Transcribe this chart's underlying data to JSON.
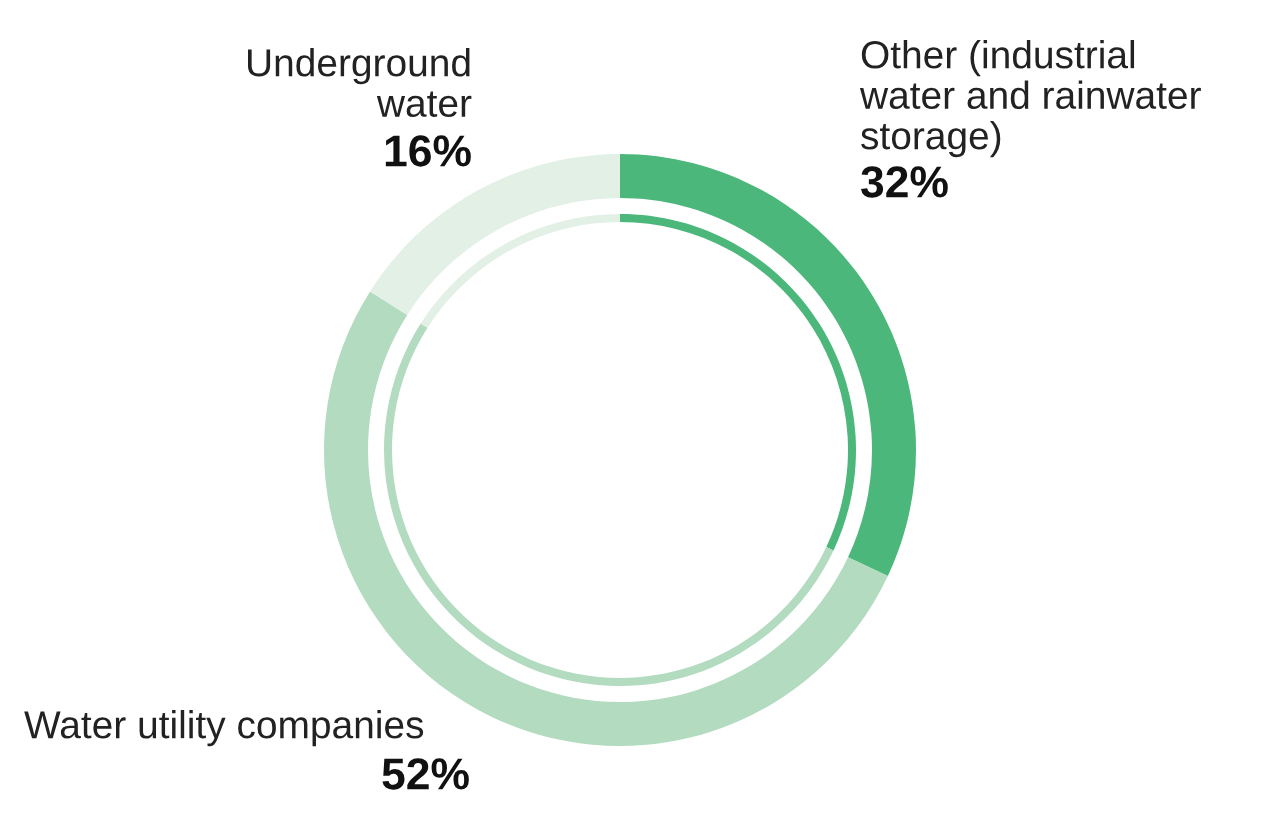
{
  "chart_data": {
    "type": "donut",
    "categories": [
      "Other (industrial\nwater and rainwater\nstorage)",
      "Water utility companies",
      "Underground\nwater"
    ],
    "series": [
      {
        "values": [
          32,
          52,
          16
        ],
        "colors": [
          "#4cb77a",
          "#b2dbbf",
          "#e2f0e6"
        ]
      },
      {
        "values": [
          32,
          52,
          16
        ],
        "colors": [
          "#4cb77a",
          "#b2dbbf",
          "#e2f0e6"
        ]
      }
    ],
    "value_labels": [
      "32%",
      "52%",
      "16%"
    ]
  }
}
